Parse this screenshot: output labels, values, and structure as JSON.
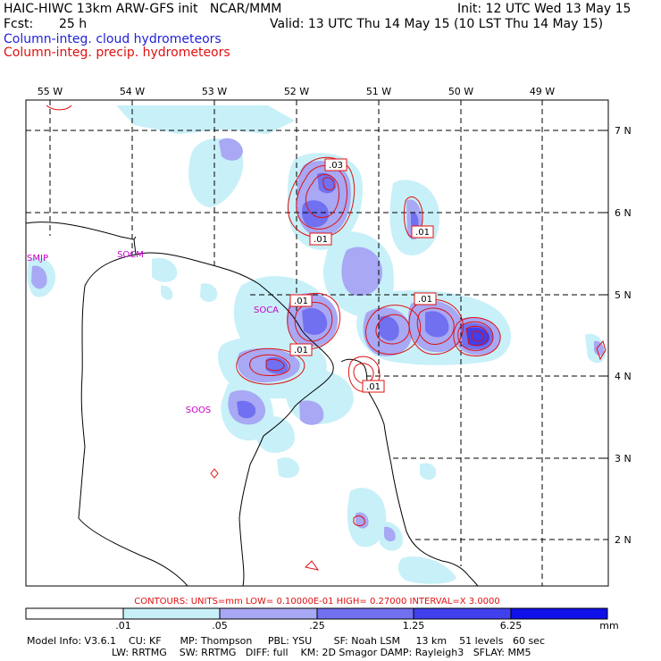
{
  "header": {
    "title_left": "HAIC-HIWC 13km ARW-GFS init   NCAR/MMM",
    "init": "Init: 12 UTC Wed 13 May 15",
    "fcst_label": "Fcst:",
    "fcst_value": "25 h",
    "valid": "Valid: 13 UTC Thu 14 May 15 (10 LST Thu 14 May 15)",
    "line_cloud": "Column-integ. cloud hydrometeors",
    "line_precip": "Column-integ. precip. hydrometeors"
  },
  "longitudes": [
    "55 W",
    "54 W",
    "53 W",
    "52 W",
    "51 W",
    "50 W",
    "49 W"
  ],
  "latitudes": [
    "7 N",
    "6 N",
    "5 N",
    "4 N",
    "3 N",
    "2 N"
  ],
  "stations": [
    "SMJP",
    "SOCM",
    "SOCA",
    "SOOS"
  ],
  "contour_labels": [
    ".03",
    ".01",
    ".01",
    ".01",
    ".01",
    ".01",
    ".01"
  ],
  "contour_info": "CONTOURS:  UNITS=mm  LOW= 0.10000E-01  HIGH= 0.27000     INTERVAL=X  3.0000",
  "colorbar": {
    "labels": [
      ".01",
      ".05",
      ".25",
      "1.25",
      "6.25"
    ],
    "units": "mm",
    "colors": [
      "#ffffff",
      "#c8f0f8",
      "#a8a8f4",
      "#7070f0",
      "#4040ec",
      "#1010e8"
    ]
  },
  "model_info": {
    "line1": "Model Info: V3.6.1    CU: KF      MP: Thompson     PBL: YSU       SF: Noah LSM     13 km    51 levels   60 sec",
    "line2": "LW: RRTMG    SW: RRTMG   DIFF: full    KM: 2D Smagor DAMP: Rayleigh3   SFLAY: MM5"
  },
  "colors": {
    "cloud_light": "#c8f0f8",
    "cloud_mid": "#a8a8f4",
    "cloud_dark": "#7070f0",
    "cloud_darker": "#4040ec",
    "precip_contour": "#e01010",
    "station": "#cc00cc"
  }
}
